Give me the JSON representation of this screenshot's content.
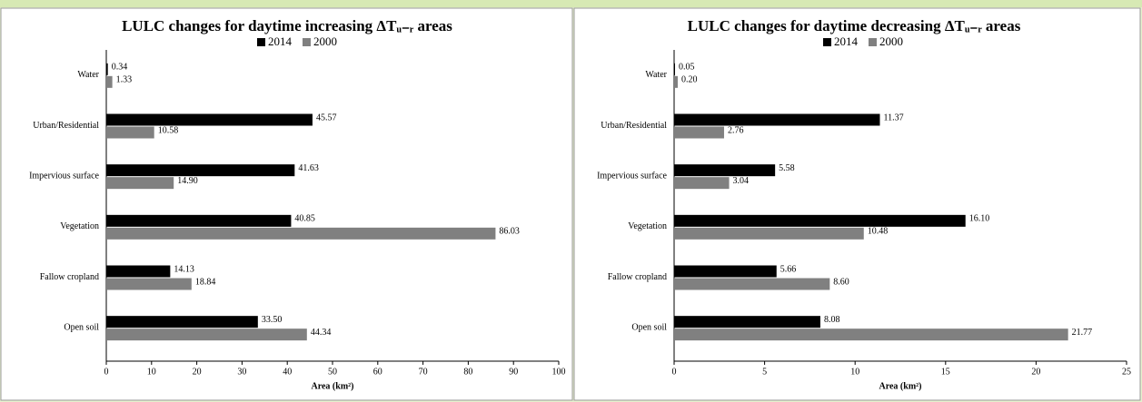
{
  "chart_data": [
    {
      "type": "hbar",
      "title": "LULC changes for daytime increasing ΔTᵤ₋ᵣ areas",
      "x_label": "Area (km²)",
      "categories": [
        "Water",
        "Urban/Residential",
        "Impervious surface",
        "Vegetation",
        "Fallow cropland",
        "Open soil"
      ],
      "series": [
        {
          "name": "2014",
          "color": "#000000",
          "values": [
            0.34,
            45.57,
            41.63,
            40.85,
            14.13,
            33.5
          ],
          "value_labels": [
            "0.34",
            "45.57",
            "41.63",
            "40.85",
            "14.13",
            "33.50"
          ]
        },
        {
          "name": "2000",
          "color": "#808080",
          "values": [
            1.33,
            10.58,
            14.9,
            86.03,
            18.84,
            44.34
          ],
          "value_labels": [
            "1.33",
            "10.58",
            "14.90",
            "86.03",
            "18.84",
            "44.34"
          ]
        }
      ],
      "xlim": [
        0,
        100
      ],
      "xticks": [
        0,
        10,
        20,
        30,
        40,
        50,
        60,
        70,
        80,
        90,
        100
      ]
    },
    {
      "type": "hbar",
      "title": "LULC changes for daytime decreasing ΔTᵤ₋ᵣ areas",
      "x_label": "Area (km²)",
      "categories": [
        "Water",
        "Urban/Residential",
        "Impervious surface",
        "Vegetation",
        "Fallow cropland",
        "Open soil"
      ],
      "series": [
        {
          "name": "2014",
          "color": "#000000",
          "values": [
            0.05,
            11.37,
            5.58,
            16.1,
            5.66,
            8.08
          ],
          "value_labels": [
            "0.05",
            "11.37",
            "5.58",
            "16.10",
            "5.66",
            "8.08"
          ]
        },
        {
          "name": "2000",
          "color": "#808080",
          "values": [
            0.2,
            2.76,
            3.04,
            10.48,
            8.6,
            21.77
          ],
          "value_labels": [
            "0.20",
            "2.76",
            "3.04",
            "10.48",
            "8.60",
            "21.77"
          ]
        }
      ],
      "xlim": [
        0,
        25
      ],
      "xticks": [
        0,
        5,
        10,
        15,
        20,
        25
      ]
    }
  ]
}
